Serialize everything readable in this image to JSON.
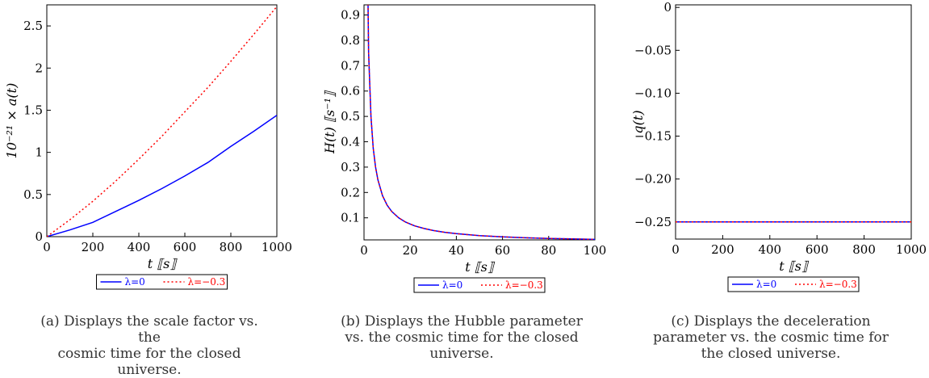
{
  "chart_data": [
    {
      "type": "line",
      "panel": "a",
      "ylabel": "10⁻²¹ × a(t)",
      "xlabel": "t ⟦s⟧",
      "xlim": [
        0,
        1000
      ],
      "ylim": [
        0,
        2.75
      ],
      "xticks": [
        "0",
        "200",
        "400",
        "600",
        "800",
        "1000"
      ],
      "yticks": [
        "0",
        "0.5",
        "1",
        "1.5",
        "2",
        "2.5"
      ],
      "series": [
        {
          "name": "λ=0",
          "color": "#0000ff",
          "dash": "solid",
          "x": [
            0,
            100,
            200,
            300,
            400,
            500,
            600,
            700,
            800,
            900,
            1000
          ],
          "y": [
            0,
            0.08,
            0.17,
            0.3,
            0.43,
            0.57,
            0.72,
            0.88,
            1.07,
            1.25,
            1.44
          ]
        },
        {
          "name": "λ=−0.3",
          "color": "#ff0000",
          "dash": "dotted",
          "x": [
            0,
            100,
            200,
            300,
            400,
            500,
            600,
            700,
            800,
            900,
            1000
          ],
          "y": [
            0,
            0.2,
            0.42,
            0.66,
            0.92,
            1.19,
            1.48,
            1.77,
            2.08,
            2.4,
            2.73
          ]
        }
      ],
      "legend": "bottom"
    },
    {
      "type": "line",
      "panel": "b",
      "ylabel": "H(t) ⟦s⁻¹⟧",
      "xlabel": "t ⟦s⟧",
      "xlim": [
        0,
        100
      ],
      "ylim": [
        0.013,
        0.94
      ],
      "xticks": [
        "0",
        "20",
        "40",
        "60",
        "80",
        "100"
      ],
      "yticks": [
        "0.1",
        "0.2",
        "0.3",
        "0.4",
        "0.5",
        "0.6",
        "0.7",
        "0.8",
        "0.9"
      ],
      "series": [
        {
          "name": "λ=0",
          "color": "#0000ff",
          "dash": "solid",
          "x": [
            1,
            2,
            3,
            4,
            5,
            6,
            8,
            10,
            12,
            15,
            18,
            22,
            26,
            30,
            35,
            40,
            50,
            60,
            70,
            80,
            90,
            100
          ],
          "y": [
            1.5,
            0.75,
            0.5,
            0.375,
            0.3,
            0.25,
            0.1875,
            0.15,
            0.125,
            0.1,
            0.083,
            0.068,
            0.058,
            0.05,
            0.043,
            0.0375,
            0.03,
            0.025,
            0.0214,
            0.01875,
            0.0167,
            0.015
          ]
        },
        {
          "name": "λ=−0.3",
          "color": "#ff0000",
          "dash": "dotted",
          "x": [
            1,
            2,
            3,
            4,
            5,
            6,
            8,
            10,
            12,
            15,
            18,
            22,
            26,
            30,
            35,
            40,
            50,
            60,
            70,
            80,
            90,
            100
          ],
          "y": [
            1.5,
            0.75,
            0.5,
            0.375,
            0.3,
            0.25,
            0.1875,
            0.15,
            0.125,
            0.1,
            0.083,
            0.068,
            0.058,
            0.05,
            0.043,
            0.0375,
            0.03,
            0.025,
            0.0214,
            0.01875,
            0.0167,
            0.015
          ]
        }
      ],
      "legend": "bottom"
    },
    {
      "type": "line",
      "panel": "c",
      "ylabel": "q(t)",
      "xlabel": "t ⟦s⟧",
      "xlim": [
        0,
        1000
      ],
      "ylim": [
        -0.27,
        0.003
      ],
      "xticks": [
        "0",
        "200",
        "400",
        "600",
        "800",
        "1000"
      ],
      "yticks": [
        "0",
        "−0.05",
        "−0.10",
        "−0.15",
        "−0.20",
        "−0.25"
      ],
      "ytick_values": [
        0,
        -0.05,
        -0.1,
        -0.15,
        -0.2,
        -0.25
      ],
      "series": [
        {
          "name": "λ=0",
          "color": "#0000ff",
          "dash": "solid",
          "x": [
            0,
            1000
          ],
          "y": [
            -0.25,
            -0.25
          ]
        },
        {
          "name": "λ=−0.3",
          "color": "#ff0000",
          "dash": "dotted",
          "x": [
            0,
            1000
          ],
          "y": [
            -0.25,
            -0.25
          ]
        }
      ],
      "legend": "bottom"
    }
  ],
  "captions": [
    {
      "label": "(a)",
      "lines": [
        "Displays the scale factor vs. the",
        "cosmic time for the closed universe."
      ]
    },
    {
      "label": "(b)",
      "lines": [
        "Displays the Hubble parameter",
        "vs. the cosmic time for the closed",
        "universe."
      ]
    },
    {
      "label": "(c)",
      "lines": [
        "Displays the deceleration",
        "parameter vs. the cosmic time for",
        "the closed universe."
      ]
    }
  ]
}
